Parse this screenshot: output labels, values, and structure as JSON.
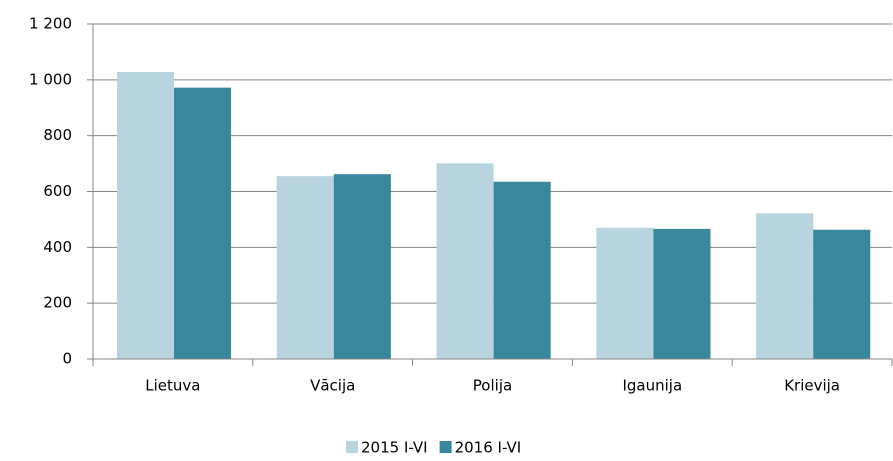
{
  "chart_data": {
    "type": "bar",
    "categories": [
      "Lietuva",
      "Vācija",
      "Polija",
      "Igaunija",
      "Krievija"
    ],
    "series": [
      {
        "name": "2015 I-VI",
        "color": "#b7d4df",
        "values": [
          1028,
          655,
          701,
          470,
          522
        ]
      },
      {
        "name": "2016 I-VI",
        "color": "#38879a",
        "values": [
          972,
          662,
          635,
          466,
          463
        ]
      }
    ],
    "ylim": [
      0,
      1200
    ],
    "yticks": [
      0,
      200,
      400,
      600,
      800,
      {
        "value": 1000,
        "label": "1 000"
      },
      {
        "value": 1200,
        "label": "1 200"
      }
    ],
    "grid": true,
    "legend": "bottom"
  }
}
